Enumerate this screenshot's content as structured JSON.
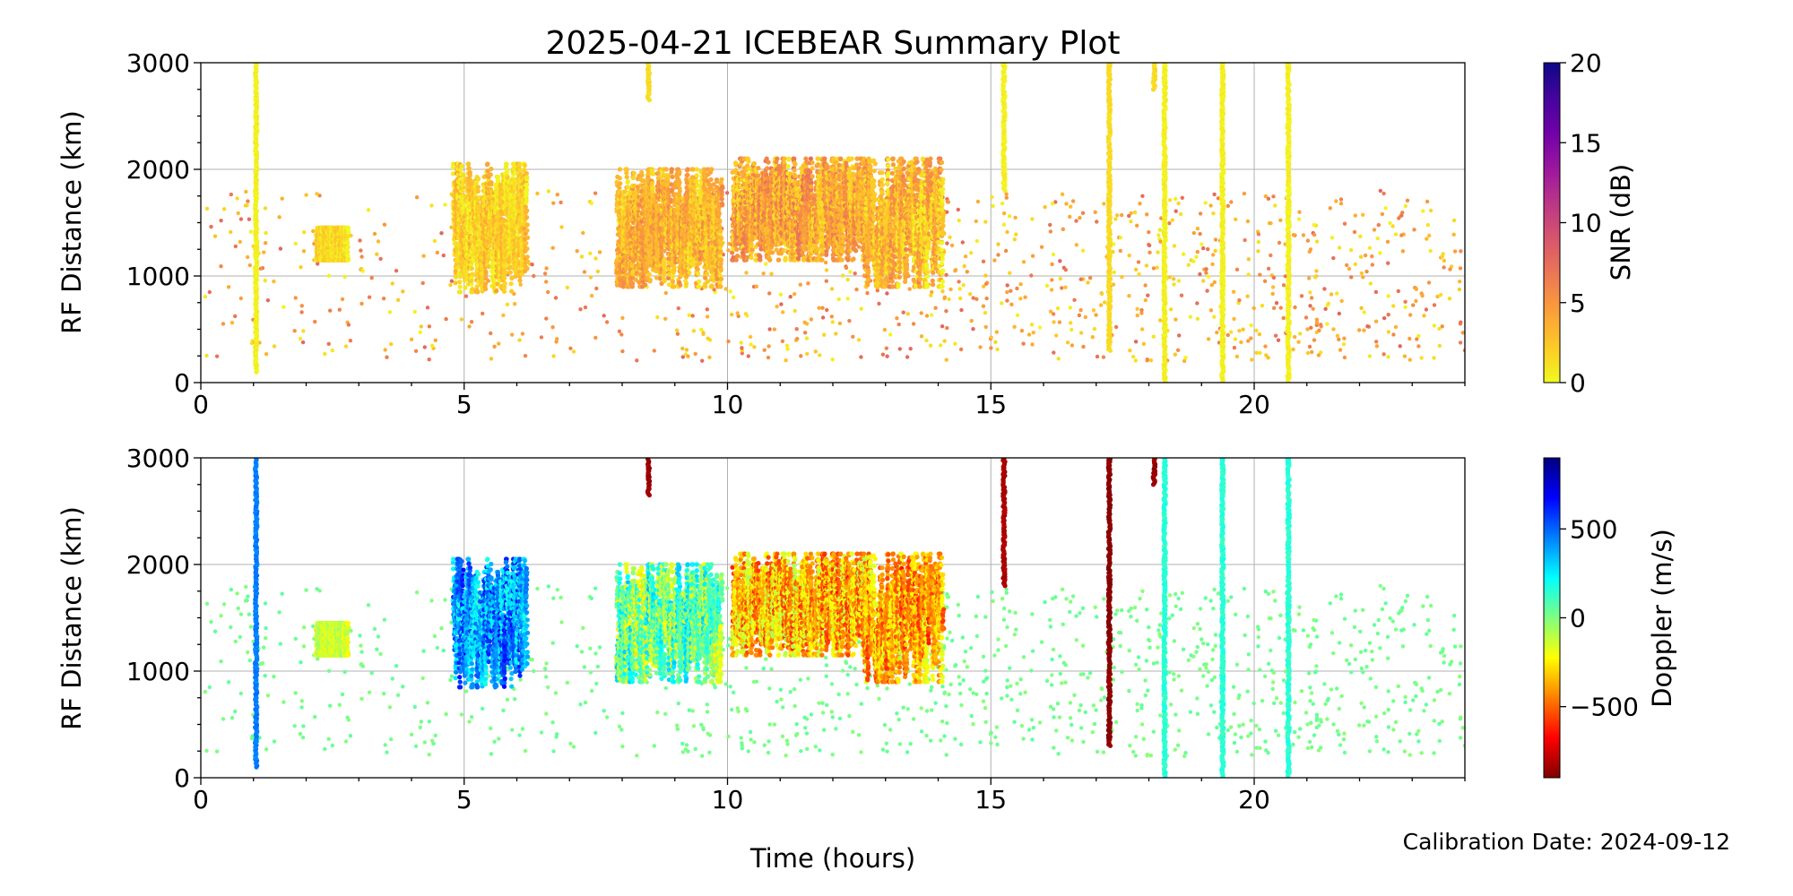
{
  "figure": {
    "title": "2025-04-21 ICEBEAR Summary Plot",
    "calibration_text": "Calibration Date: 2024-09-12"
  },
  "chart_data": [
    {
      "type": "scatter",
      "xlabel": "Time (hours)",
      "ylabel": "RF Distance (km)",
      "xlim": [
        0,
        24
      ],
      "ylim": [
        0,
        3000
      ],
      "xticks": [
        0,
        5,
        10,
        15,
        20
      ],
      "yticks": [
        0,
        1000,
        2000,
        3000
      ],
      "grid": true,
      "color_variable": "snr",
      "colorbar": {
        "label": "SNR (dB)",
        "range": [
          0,
          20
        ],
        "ticks": [
          0,
          5,
          10,
          15,
          20
        ],
        "tick_labels": [
          "0",
          "5",
          "10",
          "15",
          "20"
        ],
        "colormap": [
          "#f0f921",
          "#fdca26",
          "#fb9f3a",
          "#ed7953",
          "#d8576b",
          "#bd3786",
          "#9c179e",
          "#7201a8",
          "#46039f",
          "#0d0887"
        ]
      },
      "clusters": [
        {
          "x": [
            2.2,
            2.8
          ],
          "y": [
            1150,
            1450
          ],
          "snr": [
            0,
            3
          ],
          "doppler": [
            -220,
            -60
          ]
        },
        {
          "x": [
            4.8,
            6.2
          ],
          "y": [
            850,
            2050
          ],
          "snr": [
            0,
            4
          ],
          "doppler": [
            180,
            650
          ]
        },
        {
          "x": [
            7.9,
            9.9
          ],
          "y": [
            900,
            2000
          ],
          "snr": [
            1,
            6
          ],
          "doppler": [
            -250,
            300
          ]
        },
        {
          "x": [
            10.1,
            12.7
          ],
          "y": [
            1150,
            2100
          ],
          "snr": [
            1,
            7
          ],
          "doppler": [
            -600,
            -100
          ]
        },
        {
          "x": [
            12.6,
            14.1
          ],
          "y": [
            900,
            2100
          ],
          "snr": [
            0,
            6
          ],
          "doppler": [
            -600,
            -150
          ]
        }
      ],
      "vertical_streaks": [
        {
          "x": 1.05,
          "y": [
            100,
            3000
          ],
          "snr": 0,
          "doppler": 450
        },
        {
          "x": 8.5,
          "y": [
            2650,
            3000
          ],
          "snr": 1,
          "doppler": -850
        },
        {
          "x": 15.25,
          "y": [
            1800,
            3000
          ],
          "snr": 0,
          "doppler": -820
        },
        {
          "x": 17.25,
          "y": [
            300,
            3000
          ],
          "snr": 1,
          "doppler": -880
        },
        {
          "x": 18.1,
          "y": [
            2750,
            3000
          ],
          "snr": 1,
          "doppler": -860
        },
        {
          "x": 18.3,
          "y": [
            0,
            3000
          ],
          "snr": 0,
          "doppler": 150
        },
        {
          "x": 19.4,
          "y": [
            0,
            3000
          ],
          "snr": 0,
          "doppler": 150
        },
        {
          "x": 20.65,
          "y": [
            0,
            3000
          ],
          "snr": 0,
          "doppler": 150
        }
      ],
      "background_scatter": {
        "x": [
          0,
          24
        ],
        "y": [
          200,
          1800
        ],
        "snr": [
          0,
          8
        ],
        "doppler": [
          -20,
          60
        ]
      }
    },
    {
      "type": "scatter",
      "xlabel": "Time (hours)",
      "ylabel": "RF Distance (km)",
      "xlim": [
        0,
        24
      ],
      "ylim": [
        0,
        3000
      ],
      "xticks": [
        0,
        5,
        10,
        15,
        20
      ],
      "yticks": [
        0,
        1000,
        2000,
        3000
      ],
      "grid": true,
      "color_variable": "doppler",
      "colorbar": {
        "label": "Doppler (m/s)",
        "range": [
          -900,
          900
        ],
        "ticks": [
          -500,
          0,
          500
        ],
        "tick_labels": [
          "−500",
          "0",
          "500"
        ],
        "colormap": [
          "#7f0000",
          "#ff0000",
          "#ff7f00",
          "#ffff00",
          "#80ff80",
          "#00ffff",
          "#0080ff",
          "#0000ff",
          "#00007f"
        ]
      }
    }
  ]
}
